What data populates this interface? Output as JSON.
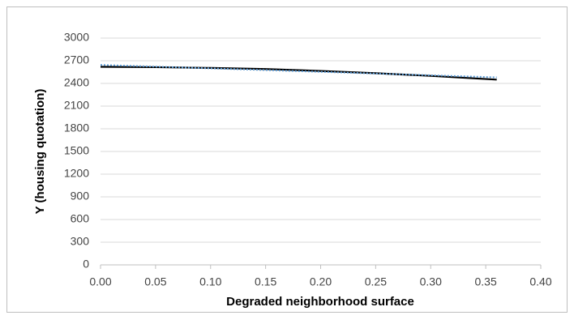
{
  "chart_data": {
    "type": "line",
    "x_label": "Degraded neighborhood surface",
    "y_label": "Y (housing quotation)",
    "series": [
      {
        "color": "#000000",
        "style": "solid",
        "x": [
          0,
          0.05,
          0.1,
          0.15,
          0.2,
          0.25,
          0.3,
          0.36
        ],
        "values": [
          2620,
          2615,
          2605,
          2590,
          2565,
          2535,
          2500,
          2450
        ]
      },
      {
        "color": "#5b9bd5",
        "style": "dotted",
        "x": [
          0,
          0.36
        ],
        "values": [
          2645,
          2480
        ]
      }
    ],
    "xlim": [
      0,
      0.4
    ],
    "xticks": [
      {
        "value": 0,
        "label": "0.00"
      },
      {
        "value": 0.05,
        "label": "0.05"
      },
      {
        "value": 0.1,
        "label": "0.10"
      },
      {
        "value": 0.15,
        "label": "0.15"
      },
      {
        "value": 0.2,
        "label": "0.20"
      },
      {
        "value": 0.25,
        "label": "0.25"
      },
      {
        "value": 0.3,
        "label": "0.30"
      },
      {
        "value": 0.35,
        "label": "0.35"
      },
      {
        "value": 0.4,
        "label": "0.40"
      }
    ],
    "ylim": [
      0,
      3000
    ],
    "yticks": [
      0,
      300,
      600,
      900,
      1200,
      1500,
      1800,
      2100,
      2400,
      2700,
      3000
    ],
    "grid": true
  }
}
